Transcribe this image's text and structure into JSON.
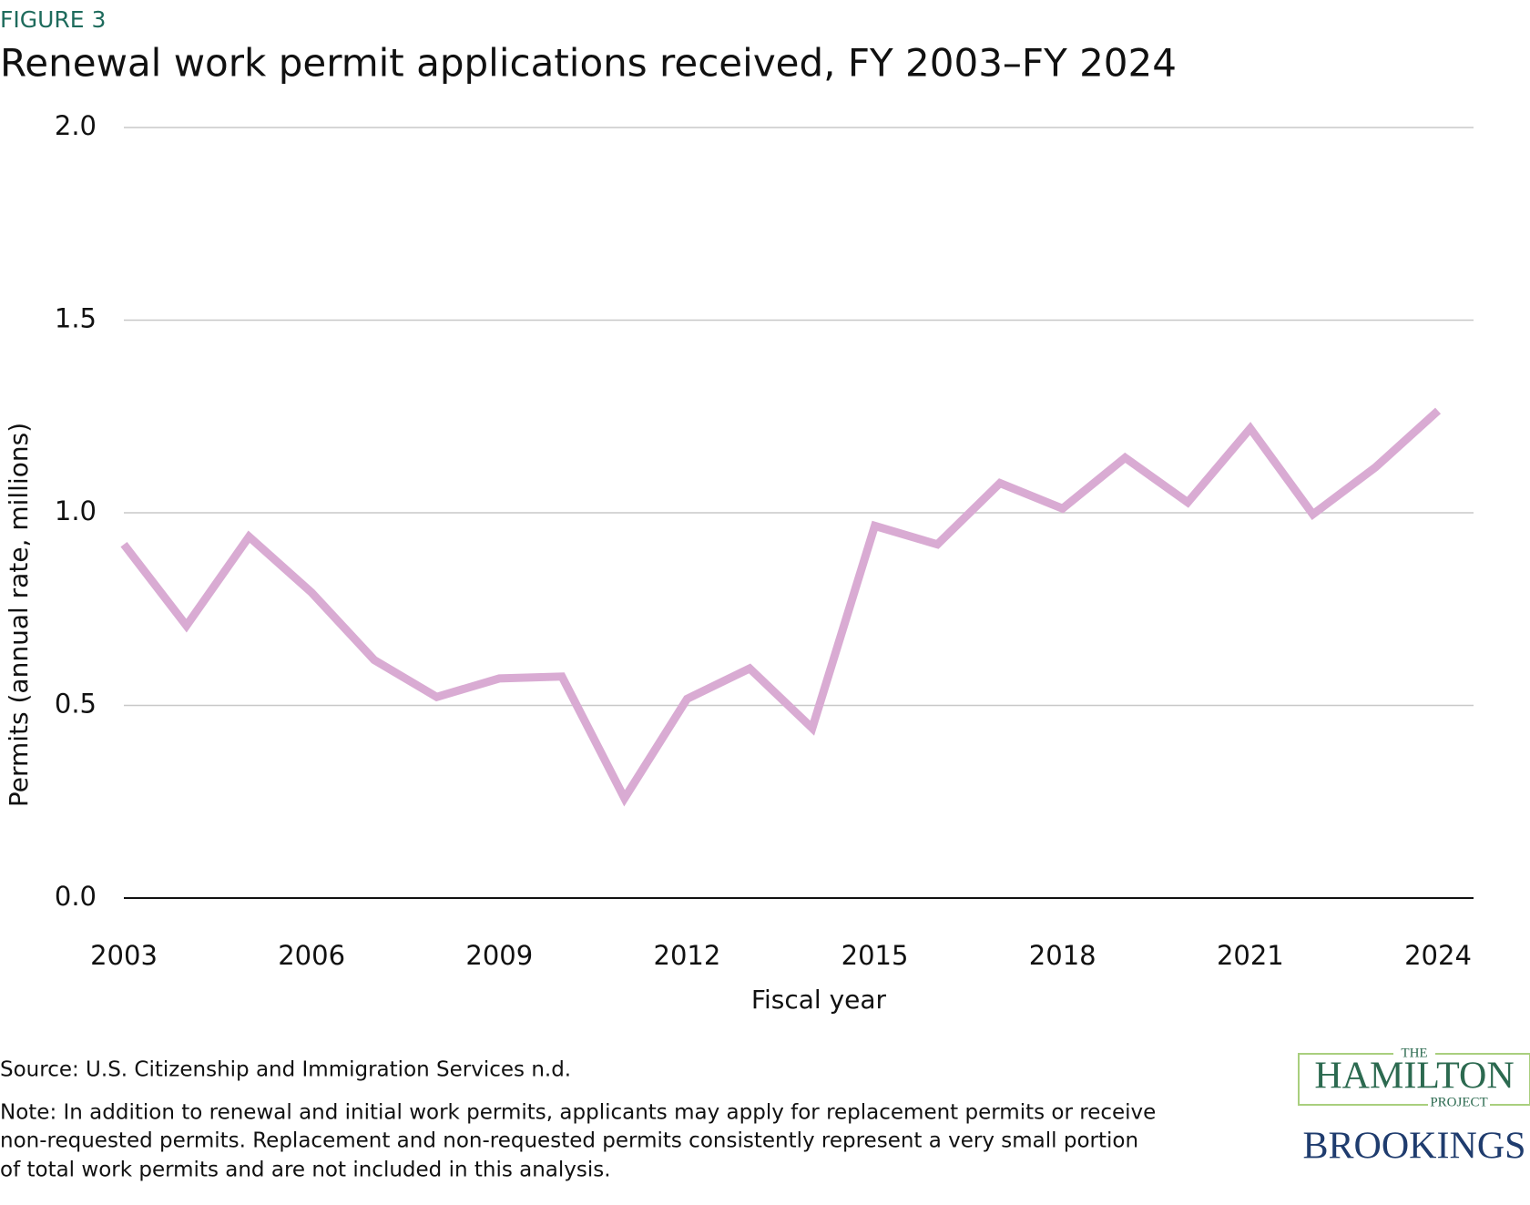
{
  "chart_data": {
    "type": "line",
    "figure_label": "FIGURE 3",
    "title": "Renewal work permit applications received, FY 2003–FY 2024",
    "y_label": "Permits (annual rate, millions)",
    "x_label": "Fiscal year",
    "x": [
      2003,
      2004,
      2005,
      2006,
      2007,
      2008,
      2009,
      2010,
      2011,
      2012,
      2013,
      2014,
      2015,
      2016,
      2017,
      2018,
      2019,
      2020,
      2021,
      2022,
      2023,
      2024
    ],
    "series": [
      {
        "color": "#d9abd3",
        "values": [
          0.918,
          0.707,
          0.938,
          0.793,
          0.618,
          0.522,
          0.57,
          0.575,
          0.259,
          0.517,
          0.596,
          0.441,
          0.966,
          0.918,
          1.077,
          1.011,
          1.143,
          1.027,
          1.219,
          0.996,
          1.118,
          1.265
        ]
      }
    ],
    "xlim": [
      2003,
      2024
    ],
    "xticks": [
      2003,
      2006,
      2009,
      2012,
      2015,
      2018,
      2021,
      2024
    ],
    "ylim": [
      0,
      2
    ],
    "yticks": [
      {
        "value": 0,
        "label": "0.0"
      },
      {
        "value": 0.5,
        "label": "0.5"
      },
      {
        "value": 1,
        "label": "1.0"
      },
      {
        "value": 1.5,
        "label": "1.5"
      },
      {
        "value": 2,
        "label": "2.0"
      }
    ],
    "grid": true
  },
  "source": "Source: U.S. Citizenship and Immigration Services n.d.",
  "note": [
    "Note: In addition to renewal and initial work permits, applicants may apply for replacement permits or receive",
    "non-requested permits. Replacement and non-requested permits consistently represent a very small portion",
    "of total work permits and are not included in this analysis."
  ],
  "logo": {
    "the": "THE",
    "hamilton": "HAMILTON",
    "project": "PROJECT",
    "brookings": "BROOKINGS"
  }
}
